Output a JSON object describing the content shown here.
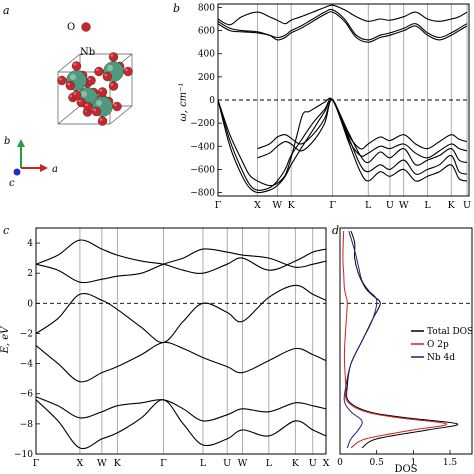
{
  "panels": {
    "a": "a",
    "b": "b",
    "c": "c",
    "d": "d"
  },
  "structure": {
    "labels": {
      "o": "O",
      "nb": "Nb"
    },
    "axes": {
      "a": "a",
      "b": "b",
      "c": "c"
    },
    "colors": {
      "nb": "#4e9a7c",
      "o": "#c8262c",
      "bond": "#9a9a9a",
      "axis_a": "#d02020",
      "axis_b": "#20a040",
      "axis_c": "#2030c0"
    }
  },
  "chart_data": [
    {
      "panel": "b",
      "type": "line",
      "title": "",
      "ylabel": "ω, cm⁻¹",
      "ylim": [
        -830,
        830
      ],
      "yticks": [
        800,
        600,
        400,
        200,
        0,
        -200,
        -400,
        -600,
        -800
      ],
      "ytick_labels": [
        "800",
        "600",
        "400",
        "200",
        "0",
        "−200",
        "−400",
        "−600",
        "−800"
      ],
      "kpoints": [
        "Γ",
        "X",
        "W",
        "K",
        "Γ",
        "L",
        "U",
        "W",
        "L",
        "K",
        "U"
      ],
      "kpoint_positions": [
        0,
        1,
        1.5,
        1.85,
        2.9,
        3.8,
        4.35,
        4.7,
        5.3,
        5.9,
        6.3
      ],
      "x_range": [
        0,
        6.35
      ],
      "zero_line": "dashed",
      "series": [
        {
          "x": [
            0,
            0.3,
            0.6,
            1.0,
            1.3,
            1.5,
            1.7,
            1.85,
            2.1,
            2.4,
            2.7,
            2.9,
            3.2,
            3.5,
            3.8,
            4.1,
            4.35,
            4.7,
            5.0,
            5.3,
            5.6,
            5.9,
            6.1,
            6.3
          ],
          "values": [
            700,
            650,
            720,
            760,
            720,
            690,
            660,
            690,
            720,
            760,
            800,
            820,
            780,
            720,
            680,
            700,
            690,
            720,
            760,
            700,
            680,
            700,
            720,
            760
          ]
        },
        {
          "x": [
            0,
            0.3,
            0.6,
            1.0,
            1.3,
            1.5,
            1.7,
            1.85,
            2.1,
            2.4,
            2.7,
            2.9,
            3.2,
            3.5,
            3.8,
            4.1,
            4.35,
            4.7,
            5.0,
            5.3,
            5.6,
            5.9,
            6.1,
            6.3
          ],
          "values": [
            680,
            620,
            600,
            590,
            560,
            540,
            560,
            600,
            640,
            700,
            760,
            780,
            700,
            560,
            520,
            560,
            580,
            620,
            660,
            580,
            540,
            580,
            620,
            660
          ]
        },
        {
          "x": [
            0,
            0.3,
            0.6,
            1.0,
            1.3,
            1.5,
            1.7,
            1.85,
            2.1,
            2.4,
            2.7,
            2.9,
            3.2,
            3.5,
            3.8,
            4.1,
            4.35,
            4.7,
            5.0,
            5.3,
            5.6,
            5.9,
            6.1,
            6.3
          ],
          "values": [
            660,
            600,
            590,
            580,
            560,
            520,
            540,
            580,
            620,
            680,
            740,
            760,
            680,
            540,
            500,
            540,
            560,
            600,
            640,
            560,
            520,
            560,
            600,
            640
          ]
        },
        {
          "x": [
            0,
            0.3,
            0.6,
            0.8,
            1.0,
            1.3,
            1.5,
            1.7,
            1.85,
            2.0,
            2.15,
            2.3,
            2.5,
            2.7,
            2.9,
            3.3,
            3.6,
            3.8,
            4.1,
            4.35,
            4.7,
            5.0,
            5.3,
            5.6,
            5.9,
            6.1,
            6.3
          ],
          "values": [
            0,
            -300,
            -520,
            -650,
            -700,
            -740,
            -720,
            -650,
            -500,
            -300,
            -120,
            -100,
            -60,
            -20,
            0,
            -280,
            -480,
            -540,
            -450,
            -500,
            -420,
            -560,
            -520,
            -480,
            -420,
            -520,
            -540
          ]
        },
        {
          "x": [
            0,
            0.3,
            0.6,
            0.8,
            1.0,
            1.3,
            1.5,
            1.7,
            1.85,
            2.1,
            2.4,
            2.7,
            2.9,
            3.3,
            3.6,
            3.8,
            4.1,
            4.35,
            4.7,
            5.0,
            5.3,
            5.6,
            5.9,
            6.1,
            6.3
          ],
          "values": [
            0,
            -350,
            -600,
            -730,
            -780,
            -760,
            -700,
            -600,
            -480,
            -350,
            -200,
            -80,
            0,
            -320,
            -560,
            -620,
            -560,
            -600,
            -520,
            -640,
            -600,
            -560,
            -480,
            -620,
            -640
          ]
        },
        {
          "x": [
            0,
            0.3,
            0.6,
            0.8,
            1.0,
            1.3,
            1.5,
            1.7,
            1.85,
            2.1,
            2.4,
            2.7,
            2.9,
            3.3,
            3.6,
            3.8,
            4.1,
            4.35,
            4.7,
            5.0,
            5.3,
            5.6,
            5.9,
            6.1,
            6.3
          ],
          "values": [
            0,
            -400,
            -650,
            -760,
            -800,
            -780,
            -740,
            -660,
            -560,
            -420,
            -260,
            -100,
            0,
            -360,
            -620,
            -700,
            -620,
            -660,
            -600,
            -700,
            -660,
            -620,
            -560,
            -680,
            -700
          ]
        },
        {
          "x": [
            1.0,
            1.3,
            1.5,
            1.7,
            1.85,
            2.1,
            2.4,
            2.7,
            2.9,
            3.3,
            3.6,
            3.8,
            4.1,
            4.35,
            4.7,
            5.0,
            5.3,
            5.6,
            5.9,
            6.1,
            6.3
          ],
          "values": [
            -420,
            -380,
            -320,
            -300,
            -330,
            -380,
            -300,
            -160,
            0,
            -300,
            -420,
            -380,
            -320,
            -350,
            -300,
            -380,
            -420,
            -360,
            -300,
            -340,
            -360
          ]
        },
        {
          "x": [
            1.0,
            1.3,
            1.5,
            1.7,
            1.85,
            2.1,
            2.4,
            2.7,
            2.9,
            3.3,
            3.6,
            3.8,
            4.1,
            4.35,
            4.7,
            5.0,
            5.3,
            5.6,
            5.9,
            6.1,
            6.3
          ],
          "values": [
            -500,
            -460,
            -400,
            -360,
            -380,
            -440,
            -360,
            -200,
            0,
            -340,
            -480,
            -460,
            -400,
            -420,
            -380,
            -460,
            -500,
            -440,
            -380,
            -420,
            -440
          ]
        }
      ]
    },
    {
      "panel": "c",
      "type": "line",
      "title": "",
      "ylabel": "E, eV",
      "ylim": [
        -10,
        5
      ],
      "yticks": [
        4,
        2,
        0,
        -2,
        -4,
        -6,
        -8,
        -10
      ],
      "ytick_labels": [
        "4",
        "2",
        "0",
        "−2",
        "−4",
        "−6",
        "−8",
        "−10"
      ],
      "kpoints": [
        "Γ",
        "X",
        "W",
        "K",
        "Γ",
        "L",
        "U",
        "W",
        "L",
        "K",
        "U",
        "X"
      ],
      "kpoint_positions": [
        0,
        1,
        1.5,
        1.85,
        2.9,
        3.8,
        4.35,
        4.7,
        5.3,
        5.9,
        6.3,
        6.6
      ],
      "x_range": [
        0,
        6.6
      ],
      "zero_line": "dashed",
      "series": [
        {
          "x": [
            0,
            0.5,
            1.0,
            1.5,
            1.85,
            2.4,
            2.9,
            3.35,
            3.8,
            4.35,
            4.7,
            5.3,
            5.9,
            6.3,
            6.6
          ],
          "values": [
            2.6,
            2.2,
            1.4,
            1.6,
            1.8,
            2.0,
            2.6,
            3.0,
            3.6,
            3.4,
            3.2,
            3.0,
            2.4,
            2.6,
            2.8
          ]
        },
        {
          "x": [
            0,
            0.5,
            1.0,
            1.5,
            1.85,
            2.4,
            2.9,
            3.35,
            3.8,
            4.35,
            4.7,
            5.3,
            5.9,
            6.3,
            6.6
          ],
          "values": [
            2.6,
            3.2,
            4.2,
            3.6,
            3.2,
            2.8,
            2.6,
            2.2,
            2.0,
            2.6,
            3.0,
            2.2,
            2.8,
            3.4,
            3.6
          ]
        },
        {
          "x": [
            0,
            0.5,
            1.0,
            1.5,
            1.85,
            2.4,
            2.9,
            3.35,
            3.8,
            4.35,
            4.7,
            5.3,
            5.9,
            6.3,
            6.6
          ],
          "values": [
            -2.8,
            -4.0,
            -5.2,
            -4.6,
            -4.2,
            -3.4,
            -2.6,
            -3.0,
            -3.6,
            -4.2,
            -4.6,
            -3.8,
            -3.0,
            -3.4,
            -3.8
          ]
        },
        {
          "x": [
            0,
            0.5,
            1.0,
            1.5,
            1.85,
            2.4,
            2.9,
            3.35,
            3.8,
            4.35,
            4.7,
            5.3,
            5.9,
            6.3,
            6.6
          ],
          "values": [
            -2.0,
            -1.0,
            0.6,
            0.2,
            -0.4,
            -1.6,
            -2.6,
            -1.2,
            0.0,
            -0.6,
            -1.2,
            0.4,
            1.2,
            0.6,
            0.2
          ]
        },
        {
          "x": [
            0,
            0.5,
            1.0,
            1.5,
            1.85,
            2.4,
            2.9,
            3.35,
            3.8,
            4.35,
            4.7,
            5.3,
            5.9,
            6.3,
            6.6
          ],
          "values": [
            -6.2,
            -6.8,
            -7.6,
            -7.2,
            -6.8,
            -6.6,
            -6.4,
            -7.0,
            -7.8,
            -7.4,
            -7.0,
            -7.2,
            -6.6,
            -6.8,
            -7.0
          ]
        },
        {
          "x": [
            0,
            0.5,
            1.0,
            1.5,
            1.85,
            2.4,
            2.9,
            3.35,
            3.8,
            4.35,
            4.7,
            5.3,
            5.9,
            6.3,
            6.6
          ],
          "values": [
            -6.4,
            -7.8,
            -9.6,
            -9.0,
            -8.6,
            -7.6,
            -6.4,
            -8.0,
            -9.4,
            -9.0,
            -8.4,
            -8.8,
            -7.8,
            -8.4,
            -8.8
          ]
        }
      ]
    },
    {
      "panel": "d",
      "type": "line",
      "title": "",
      "xlabel": "DOS",
      "xlim": [
        0,
        1.8
      ],
      "xticks": [
        0,
        0.5,
        1,
        1.5
      ],
      "xtick_labels": [
        "0",
        "0.5",
        "1",
        "1.5"
      ],
      "ylim": [
        -10,
        5
      ],
      "zero_line": "dashed",
      "legend_position": "right",
      "series": [
        {
          "name": "Total DOS",
          "color": "#000000",
          "x": [
            0.15,
            0.2,
            0.2,
            0.25,
            0.35,
            0.45,
            0.55,
            0.45,
            0.3,
            0.15,
            0.1,
            0.12,
            0.4,
            0.9,
            1.6,
            1.2,
            0.5,
            0.3
          ],
          "y": [
            4.8,
            4.0,
            3.0,
            2.0,
            1.0,
            0.5,
            0.0,
            -1.0,
            -2.5,
            -4.0,
            -5.5,
            -6.5,
            -7.2,
            -7.6,
            -8.0,
            -8.4,
            -9.0,
            -9.6
          ]
        },
        {
          "name": "O 2p",
          "color": "#d02020",
          "x": [
            0.05,
            0.04,
            0.05,
            0.06,
            0.08,
            0.1,
            0.08,
            0.06,
            0.08,
            0.1,
            0.35,
            0.8,
            1.45,
            1.0,
            0.35,
            0.15
          ],
          "y": [
            4.8,
            3.0,
            2.0,
            1.0,
            0.5,
            0.0,
            -1.5,
            -3.5,
            -5.5,
            -6.5,
            -7.2,
            -7.6,
            -8.0,
            -8.4,
            -9.0,
            -9.6
          ]
        },
        {
          "name": "Nb 4d",
          "color": "#20207a",
          "x": [
            0.12,
            0.2,
            0.25,
            0.3,
            0.4,
            0.5,
            0.45,
            0.3,
            0.15,
            0.08,
            0.06,
            0.15,
            0.3,
            0.25,
            0.15,
            0.1
          ],
          "y": [
            4.8,
            3.5,
            2.5,
            1.5,
            0.8,
            0.2,
            -1.0,
            -2.5,
            -4.0,
            -5.5,
            -6.5,
            -7.2,
            -7.8,
            -8.4,
            -9.0,
            -9.6
          ]
        }
      ]
    }
  ]
}
